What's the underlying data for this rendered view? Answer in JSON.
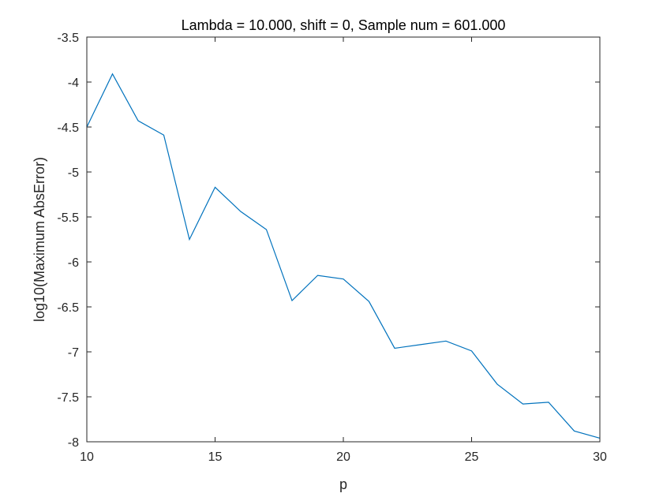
{
  "chart_data": {
    "type": "line",
    "title": "Lambda = 10.000, shift = 0, Sample num = 601.000",
    "xlabel": "p",
    "ylabel": "log10(Maximum AbsError)",
    "xlim": [
      10,
      30
    ],
    "ylim": [
      -8,
      -3.5
    ],
    "xticks": [
      10,
      15,
      20,
      25,
      30
    ],
    "xtick_labels": [
      "10",
      "15",
      "20",
      "25",
      "30"
    ],
    "yticks": [
      -3.5,
      -4,
      -4.5,
      -5,
      -5.5,
      -6,
      -6.5,
      -7,
      -7.5,
      -8
    ],
    "ytick_labels": [
      "-3.5",
      "-4",
      "-4.5",
      "-5",
      "-5.5",
      "-6",
      "-6.5",
      "-7",
      "-7.5",
      "-8"
    ],
    "grid": false,
    "box": true,
    "series": [
      {
        "color": "#0072BD",
        "x": [
          10,
          11,
          12,
          13,
          14,
          15,
          16,
          17,
          18,
          19,
          20,
          21,
          22,
          23,
          24,
          25,
          26,
          27,
          28,
          29,
          30
        ],
        "y": [
          -4.5,
          -3.91,
          -4.43,
          -4.59,
          -5.75,
          -5.17,
          -5.44,
          -5.64,
          -6.43,
          -6.15,
          -6.19,
          -6.44,
          -6.96,
          -6.92,
          -6.88,
          -6.99,
          -7.36,
          -7.58,
          -7.56,
          -7.88,
          -7.96
        ]
      }
    ]
  }
}
